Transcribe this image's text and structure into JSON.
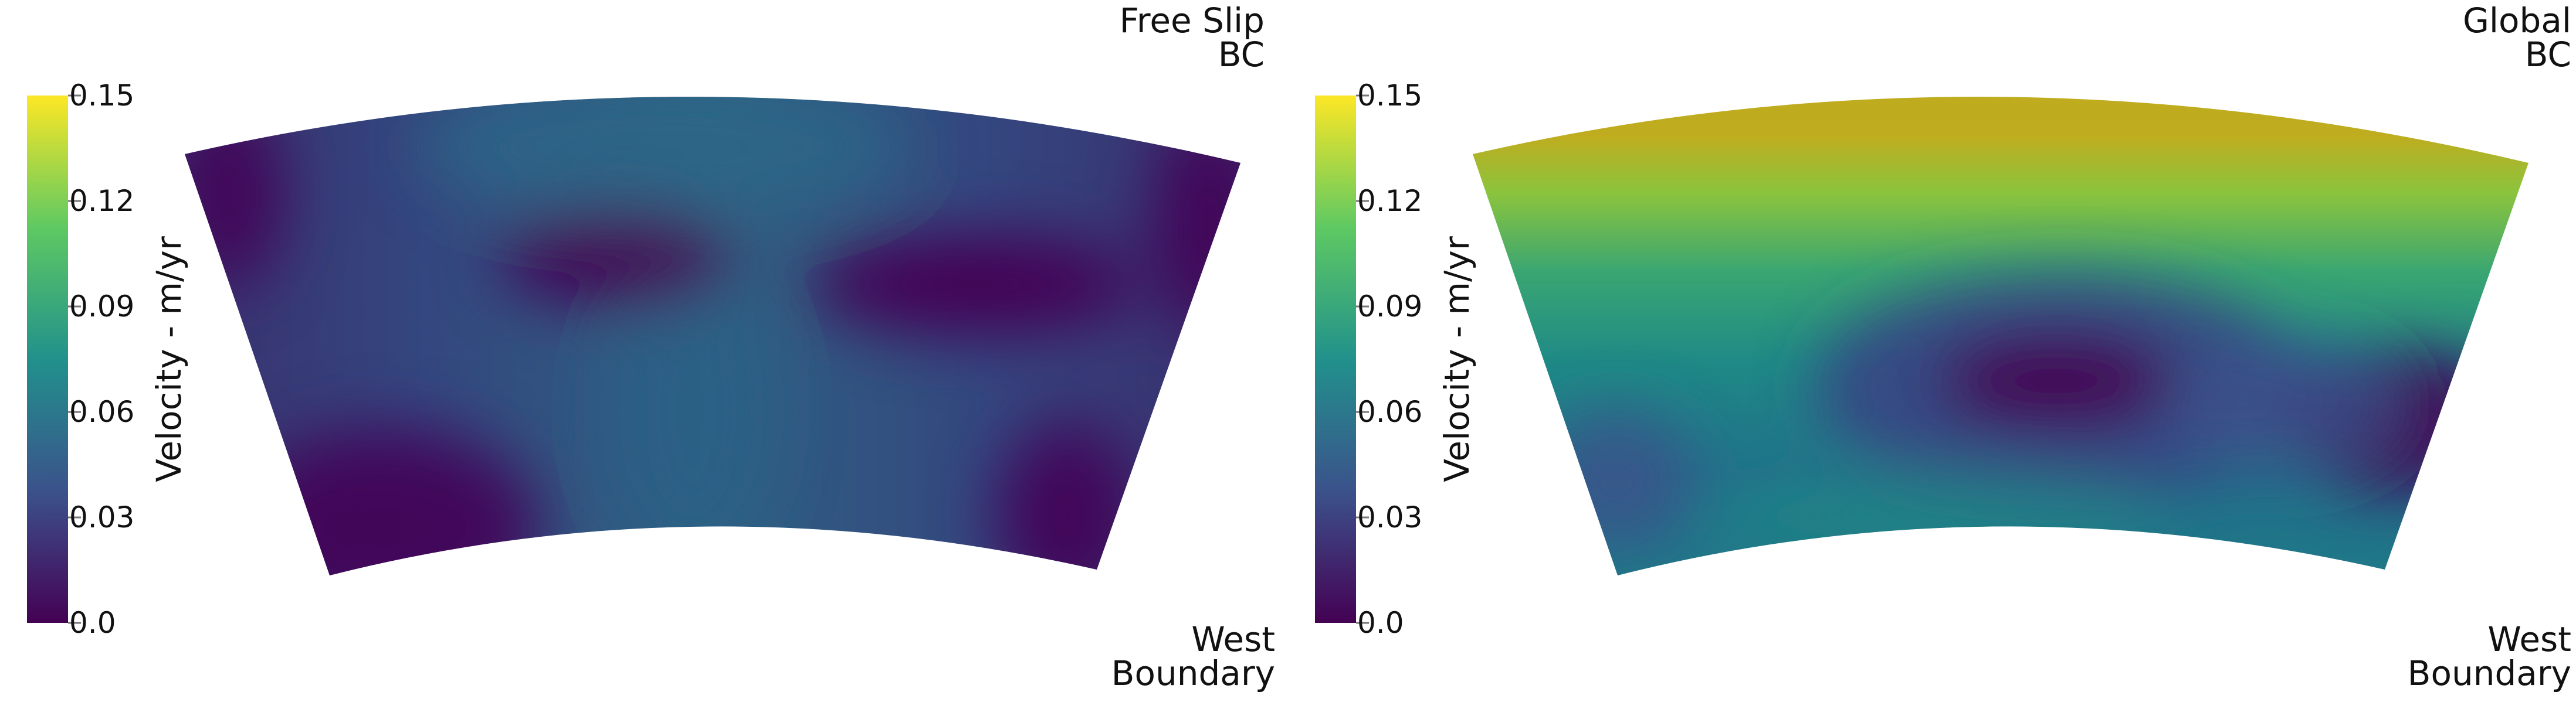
{
  "colorbar": {
    "title": "Velocity - m/yr",
    "ticks": [
      "0.15",
      "0.12",
      "0.09",
      "0.06",
      "0.03",
      "0.0"
    ],
    "colormap": [
      "#440154",
      "#3b528b",
      "#21918c",
      "#5ec962",
      "#fde725"
    ]
  },
  "panels": [
    {
      "top_label": [
        "Free Slip",
        "BC"
      ],
      "bottom_label": [
        "West",
        "Boundary"
      ]
    },
    {
      "top_label": [
        "Global",
        "BC"
      ],
      "bottom_label": [
        "West",
        "Boundary"
      ]
    }
  ]
}
